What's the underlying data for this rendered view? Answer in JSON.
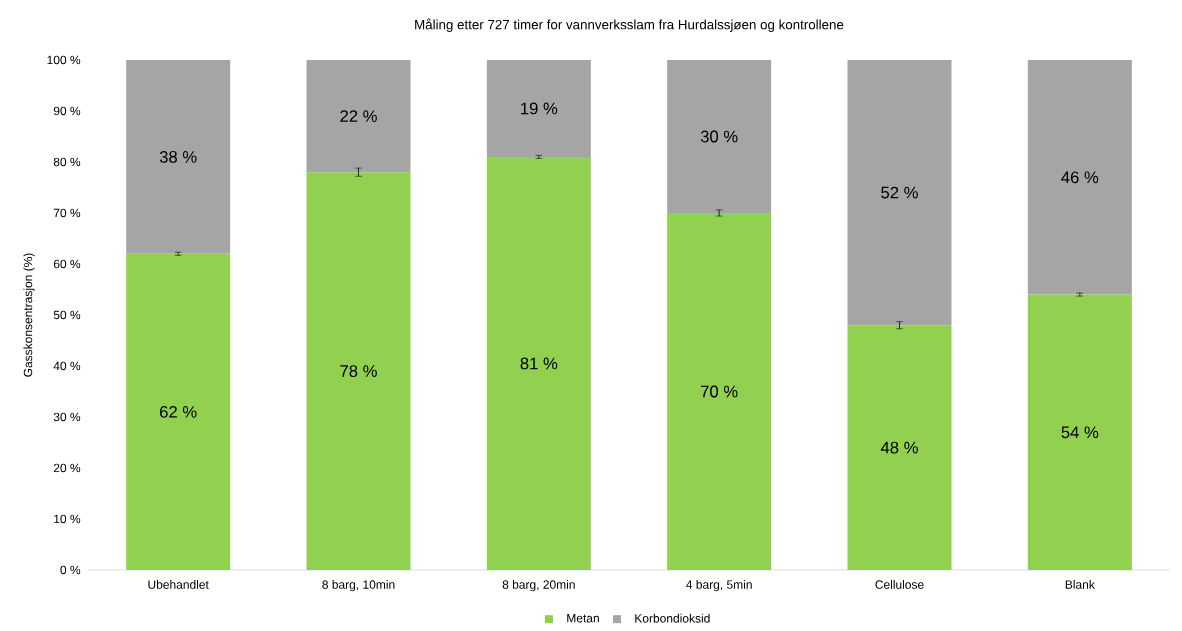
{
  "chart_data": {
    "type": "bar",
    "stacked": true,
    "title": "Måling etter 727 timer for vannverksslam fra Hurdalssjøen og kontrollene",
    "ylabel": "Gasskonsentrasjon (%)",
    "categories": [
      "Ubehandlet",
      "8 barg, 10min",
      "8 barg, 20min",
      "4 barg, 5min",
      "Cellulose",
      "Blank"
    ],
    "series": [
      {
        "name": "Metan",
        "color": "#92d050",
        "values": [
          62,
          78,
          81,
          70,
          48,
          54
        ],
        "errors": [
          0.3,
          0.8,
          0.3,
          0.6,
          0.7,
          0.3
        ],
        "value_labels": [
          "62 %",
          "78 %",
          "81 %",
          "70 %",
          "48 %",
          "54 %"
        ]
      },
      {
        "name": "Korbondioksid",
        "color": "#a5a5a5",
        "values": [
          38,
          22,
          19,
          30,
          52,
          46
        ],
        "value_labels": [
          "38 %",
          "22 %",
          "19 %",
          "30 %",
          "52 %",
          "46 %"
        ]
      }
    ],
    "ylim": [
      0,
      100
    ],
    "yticks": [
      {
        "value": 0,
        "label": "0 %"
      },
      {
        "value": 10,
        "label": "10 %"
      },
      {
        "value": 20,
        "label": "20 %"
      },
      {
        "value": 30,
        "label": "30 %"
      },
      {
        "value": 40,
        "label": "40 %"
      },
      {
        "value": 50,
        "label": "50 %"
      },
      {
        "value": 60,
        "label": "60 %"
      },
      {
        "value": 70,
        "label": "70 %"
      },
      {
        "value": 80,
        "label": "80 %"
      },
      {
        "value": 90,
        "label": "90 %"
      },
      {
        "value": 100,
        "label": "100 %"
      }
    ],
    "legend": "bottom",
    "grid": false
  }
}
